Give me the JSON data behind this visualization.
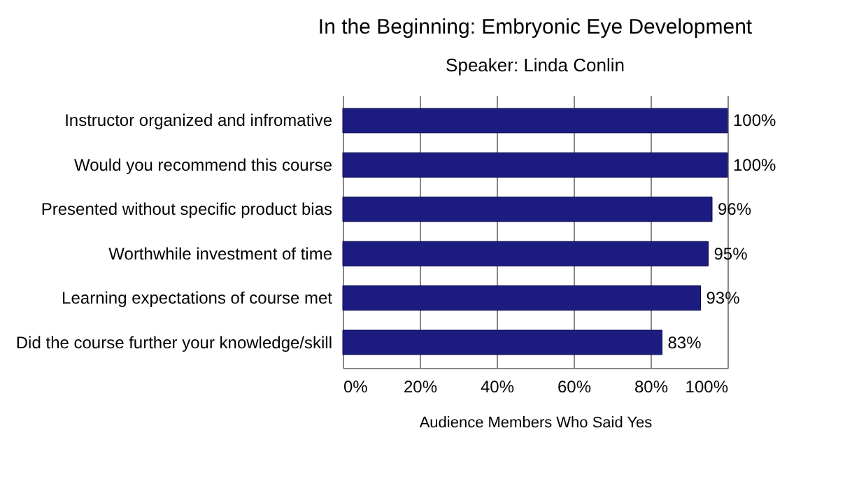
{
  "chart_data": {
    "type": "bar",
    "orientation": "horizontal",
    "title": "In the Beginning: Embryonic Eye Development",
    "subtitle": "Speaker: Linda Conlin",
    "xlabel": "Audience Members Who Said Yes",
    "categories": [
      "Instructor organized and infromative",
      "Would you recommend this course",
      "Presented without specific product bias",
      "Worthwhile investment of time",
      "Learning expectations of course met",
      "Did the course further your knowledge/skill"
    ],
    "values": [
      100,
      100,
      96,
      95,
      93,
      83
    ],
    "value_labels": [
      "100%",
      "100%",
      "96%",
      "95%",
      "93%",
      "83%"
    ],
    "color": "#1c1c80",
    "xlim": [
      0,
      100
    ],
    "xticks": [
      {
        "value": 0,
        "label": "0%"
      },
      {
        "value": 20,
        "label": "20%"
      },
      {
        "value": 40,
        "label": "40%"
      },
      {
        "value": 60,
        "label": "60%"
      },
      {
        "value": 80,
        "label": "80%"
      },
      {
        "value": 100,
        "label": "100%"
      }
    ],
    "grid": "x"
  }
}
